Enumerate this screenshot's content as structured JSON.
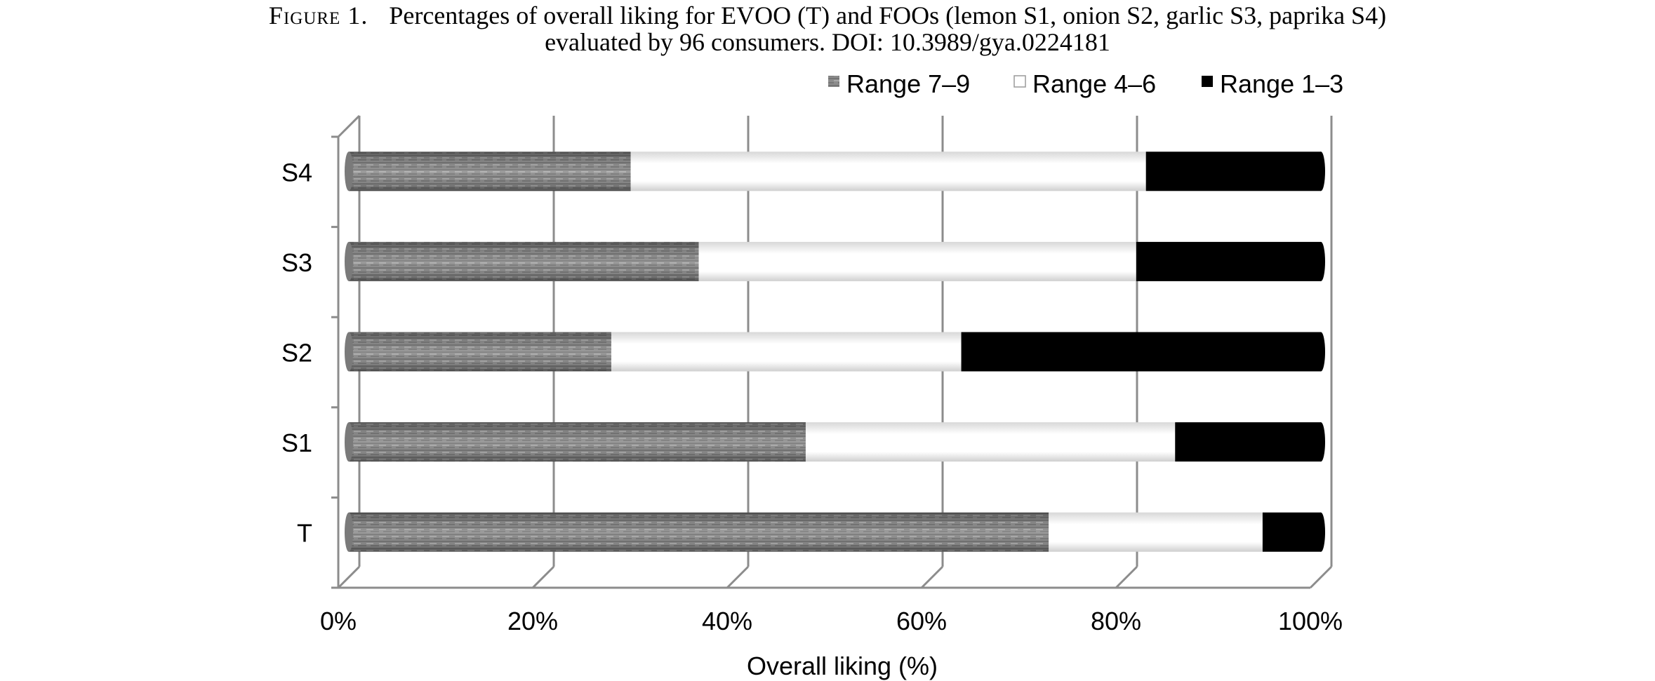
{
  "caption": {
    "figure_label": "Figure 1.",
    "line1": "Percentages of overall liking for EVOO (T) and FOOs (lemon S1, onion S2, garlic S3, paprika S4)",
    "line2": "evaluated by 96 consumers.  DOI: 10.3989/gya.0224181"
  },
  "chart_data": {
    "type": "bar",
    "orientation": "horizontal",
    "stacked": "percent",
    "categories": [
      "T",
      "S1",
      "S2",
      "S3",
      "S4"
    ],
    "series": [
      {
        "name": "Range 7–9",
        "values": [
          72,
          47,
          27,
          36,
          29
        ],
        "color": "#8a8a8a"
      },
      {
        "name": "Range 4–6",
        "values": [
          22,
          38,
          36,
          45,
          53
        ],
        "color": "#ffffff"
      },
      {
        "name": "Range 1–3",
        "values": [
          6,
          15,
          37,
          19,
          18
        ],
        "color": "#000000"
      }
    ],
    "xlabel": "Overall liking (%)",
    "ylabel": "",
    "xlim": [
      0,
      100
    ],
    "xticks": [
      "0%",
      "20%",
      "40%",
      "60%",
      "80%",
      "100%"
    ],
    "grid": true,
    "legend": "top-right"
  }
}
